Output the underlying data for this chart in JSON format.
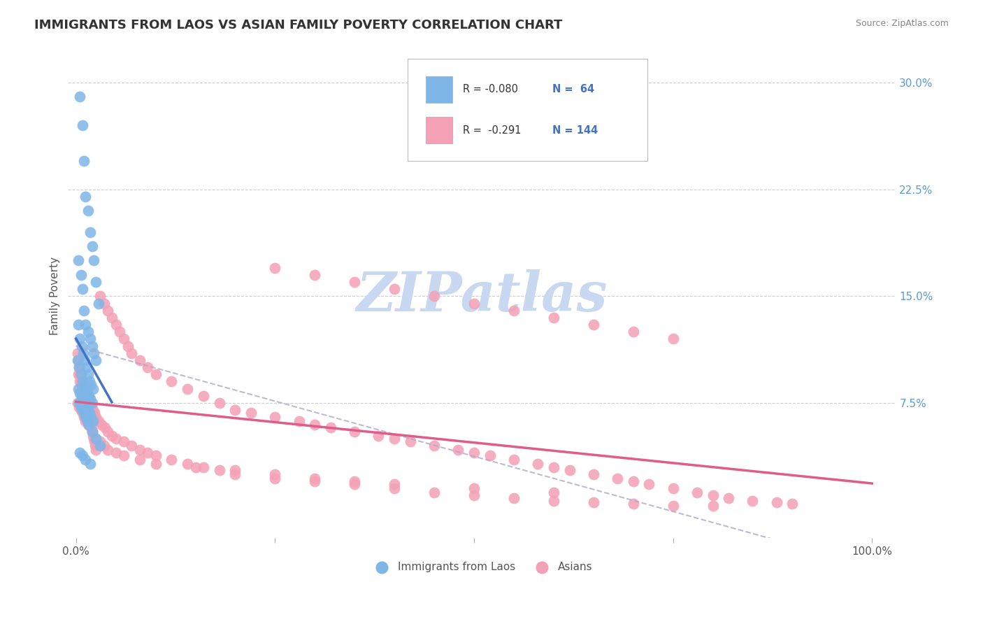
{
  "title": "IMMIGRANTS FROM LAOS VS ASIAN FAMILY POVERTY CORRELATION CHART",
  "source": "Source: ZipAtlas.com",
  "ylabel": "Family Poverty",
  "color_blue": "#7EB6E8",
  "color_pink": "#F4A0B5",
  "color_blue_line": "#4472C4",
  "color_pink_line": "#E05C8A",
  "color_dashed": "#AAAACC",
  "watermark": "ZIPatlas",
  "watermark_color": "#C8D8F0",
  "blue_scatter_x": [
    0.005,
    0.008,
    0.01,
    0.012,
    0.015,
    0.018,
    0.02,
    0.022,
    0.025,
    0.028,
    0.003,
    0.006,
    0.008,
    0.01,
    0.012,
    0.015,
    0.018,
    0.02,
    0.022,
    0.025,
    0.003,
    0.005,
    0.007,
    0.009,
    0.011,
    0.013,
    0.015,
    0.017,
    0.019,
    0.021,
    0.002,
    0.004,
    0.006,
    0.008,
    0.01,
    0.012,
    0.014,
    0.016,
    0.018,
    0.02,
    0.003,
    0.005,
    0.007,
    0.009,
    0.011,
    0.013,
    0.015,
    0.017,
    0.019,
    0.021,
    0.004,
    0.006,
    0.008,
    0.01,
    0.012,
    0.014,
    0.016,
    0.02,
    0.025,
    0.03,
    0.005,
    0.008,
    0.012,
    0.018
  ],
  "blue_scatter_y": [
    0.29,
    0.27,
    0.245,
    0.22,
    0.21,
    0.195,
    0.185,
    0.175,
    0.16,
    0.145,
    0.175,
    0.165,
    0.155,
    0.14,
    0.13,
    0.125,
    0.12,
    0.115,
    0.11,
    0.105,
    0.13,
    0.12,
    0.115,
    0.11,
    0.105,
    0.1,
    0.095,
    0.09,
    0.088,
    0.085,
    0.105,
    0.1,
    0.095,
    0.09,
    0.088,
    0.085,
    0.082,
    0.08,
    0.078,
    0.075,
    0.085,
    0.082,
    0.08,
    0.078,
    0.075,
    0.072,
    0.07,
    0.068,
    0.065,
    0.062,
    0.075,
    0.072,
    0.07,
    0.068,
    0.065,
    0.062,
    0.06,
    0.055,
    0.05,
    0.045,
    0.04,
    0.038,
    0.035,
    0.032
  ],
  "pink_scatter_x": [
    0.002,
    0.003,
    0.004,
    0.005,
    0.006,
    0.007,
    0.008,
    0.009,
    0.01,
    0.011,
    0.012,
    0.013,
    0.014,
    0.015,
    0.016,
    0.017,
    0.018,
    0.019,
    0.02,
    0.021,
    0.022,
    0.023,
    0.024,
    0.025,
    0.03,
    0.035,
    0.04,
    0.045,
    0.05,
    0.055,
    0.06,
    0.065,
    0.07,
    0.08,
    0.09,
    0.1,
    0.12,
    0.14,
    0.16,
    0.18,
    0.2,
    0.22,
    0.25,
    0.28,
    0.3,
    0.32,
    0.35,
    0.38,
    0.4,
    0.42,
    0.45,
    0.48,
    0.5,
    0.52,
    0.55,
    0.58,
    0.6,
    0.62,
    0.65,
    0.68,
    0.7,
    0.72,
    0.75,
    0.78,
    0.8,
    0.82,
    0.85,
    0.88,
    0.9,
    0.25,
    0.3,
    0.35,
    0.4,
    0.45,
    0.5,
    0.55,
    0.6,
    0.65,
    0.7,
    0.75,
    0.003,
    0.005,
    0.007,
    0.009,
    0.011,
    0.013,
    0.015,
    0.017,
    0.019,
    0.021,
    0.023,
    0.025,
    0.028,
    0.032,
    0.036,
    0.04,
    0.045,
    0.05,
    0.06,
    0.07,
    0.08,
    0.09,
    0.1,
    0.12,
    0.14,
    0.16,
    0.18,
    0.2,
    0.25,
    0.3,
    0.35,
    0.4,
    0.45,
    0.5,
    0.55,
    0.6,
    0.65,
    0.7,
    0.75,
    0.8,
    0.002,
    0.004,
    0.006,
    0.008,
    0.01,
    0.012,
    0.015,
    0.02,
    0.025,
    0.03,
    0.035,
    0.04,
    0.05,
    0.06,
    0.08,
    0.1,
    0.15,
    0.2,
    0.25,
    0.3,
    0.35,
    0.4,
    0.5,
    0.6
  ],
  "pink_scatter_y": [
    0.11,
    0.105,
    0.1,
    0.095,
    0.09,
    0.088,
    0.085,
    0.082,
    0.08,
    0.078,
    0.075,
    0.072,
    0.07,
    0.068,
    0.065,
    0.062,
    0.06,
    0.058,
    0.055,
    0.052,
    0.05,
    0.048,
    0.045,
    0.042,
    0.15,
    0.145,
    0.14,
    0.135,
    0.13,
    0.125,
    0.12,
    0.115,
    0.11,
    0.105,
    0.1,
    0.095,
    0.09,
    0.085,
    0.08,
    0.075,
    0.07,
    0.068,
    0.065,
    0.062,
    0.06,
    0.058,
    0.055,
    0.052,
    0.05,
    0.048,
    0.045,
    0.042,
    0.04,
    0.038,
    0.035,
    0.032,
    0.03,
    0.028,
    0.025,
    0.022,
    0.02,
    0.018,
    0.015,
    0.012,
    0.01,
    0.008,
    0.006,
    0.005,
    0.004,
    0.17,
    0.165,
    0.16,
    0.155,
    0.15,
    0.145,
    0.14,
    0.135,
    0.13,
    0.125,
    0.12,
    0.095,
    0.09,
    0.088,
    0.085,
    0.082,
    0.08,
    0.078,
    0.075,
    0.072,
    0.07,
    0.068,
    0.065,
    0.062,
    0.06,
    0.058,
    0.055,
    0.052,
    0.05,
    0.048,
    0.045,
    0.042,
    0.04,
    0.038,
    0.035,
    0.032,
    0.03,
    0.028,
    0.025,
    0.022,
    0.02,
    0.018,
    0.015,
    0.012,
    0.01,
    0.008,
    0.006,
    0.005,
    0.004,
    0.003,
    0.003,
    0.075,
    0.072,
    0.07,
    0.068,
    0.065,
    0.062,
    0.06,
    0.055,
    0.05,
    0.048,
    0.045,
    0.042,
    0.04,
    0.038,
    0.035,
    0.032,
    0.03,
    0.028,
    0.025,
    0.022,
    0.02,
    0.018,
    0.015,
    0.012
  ]
}
